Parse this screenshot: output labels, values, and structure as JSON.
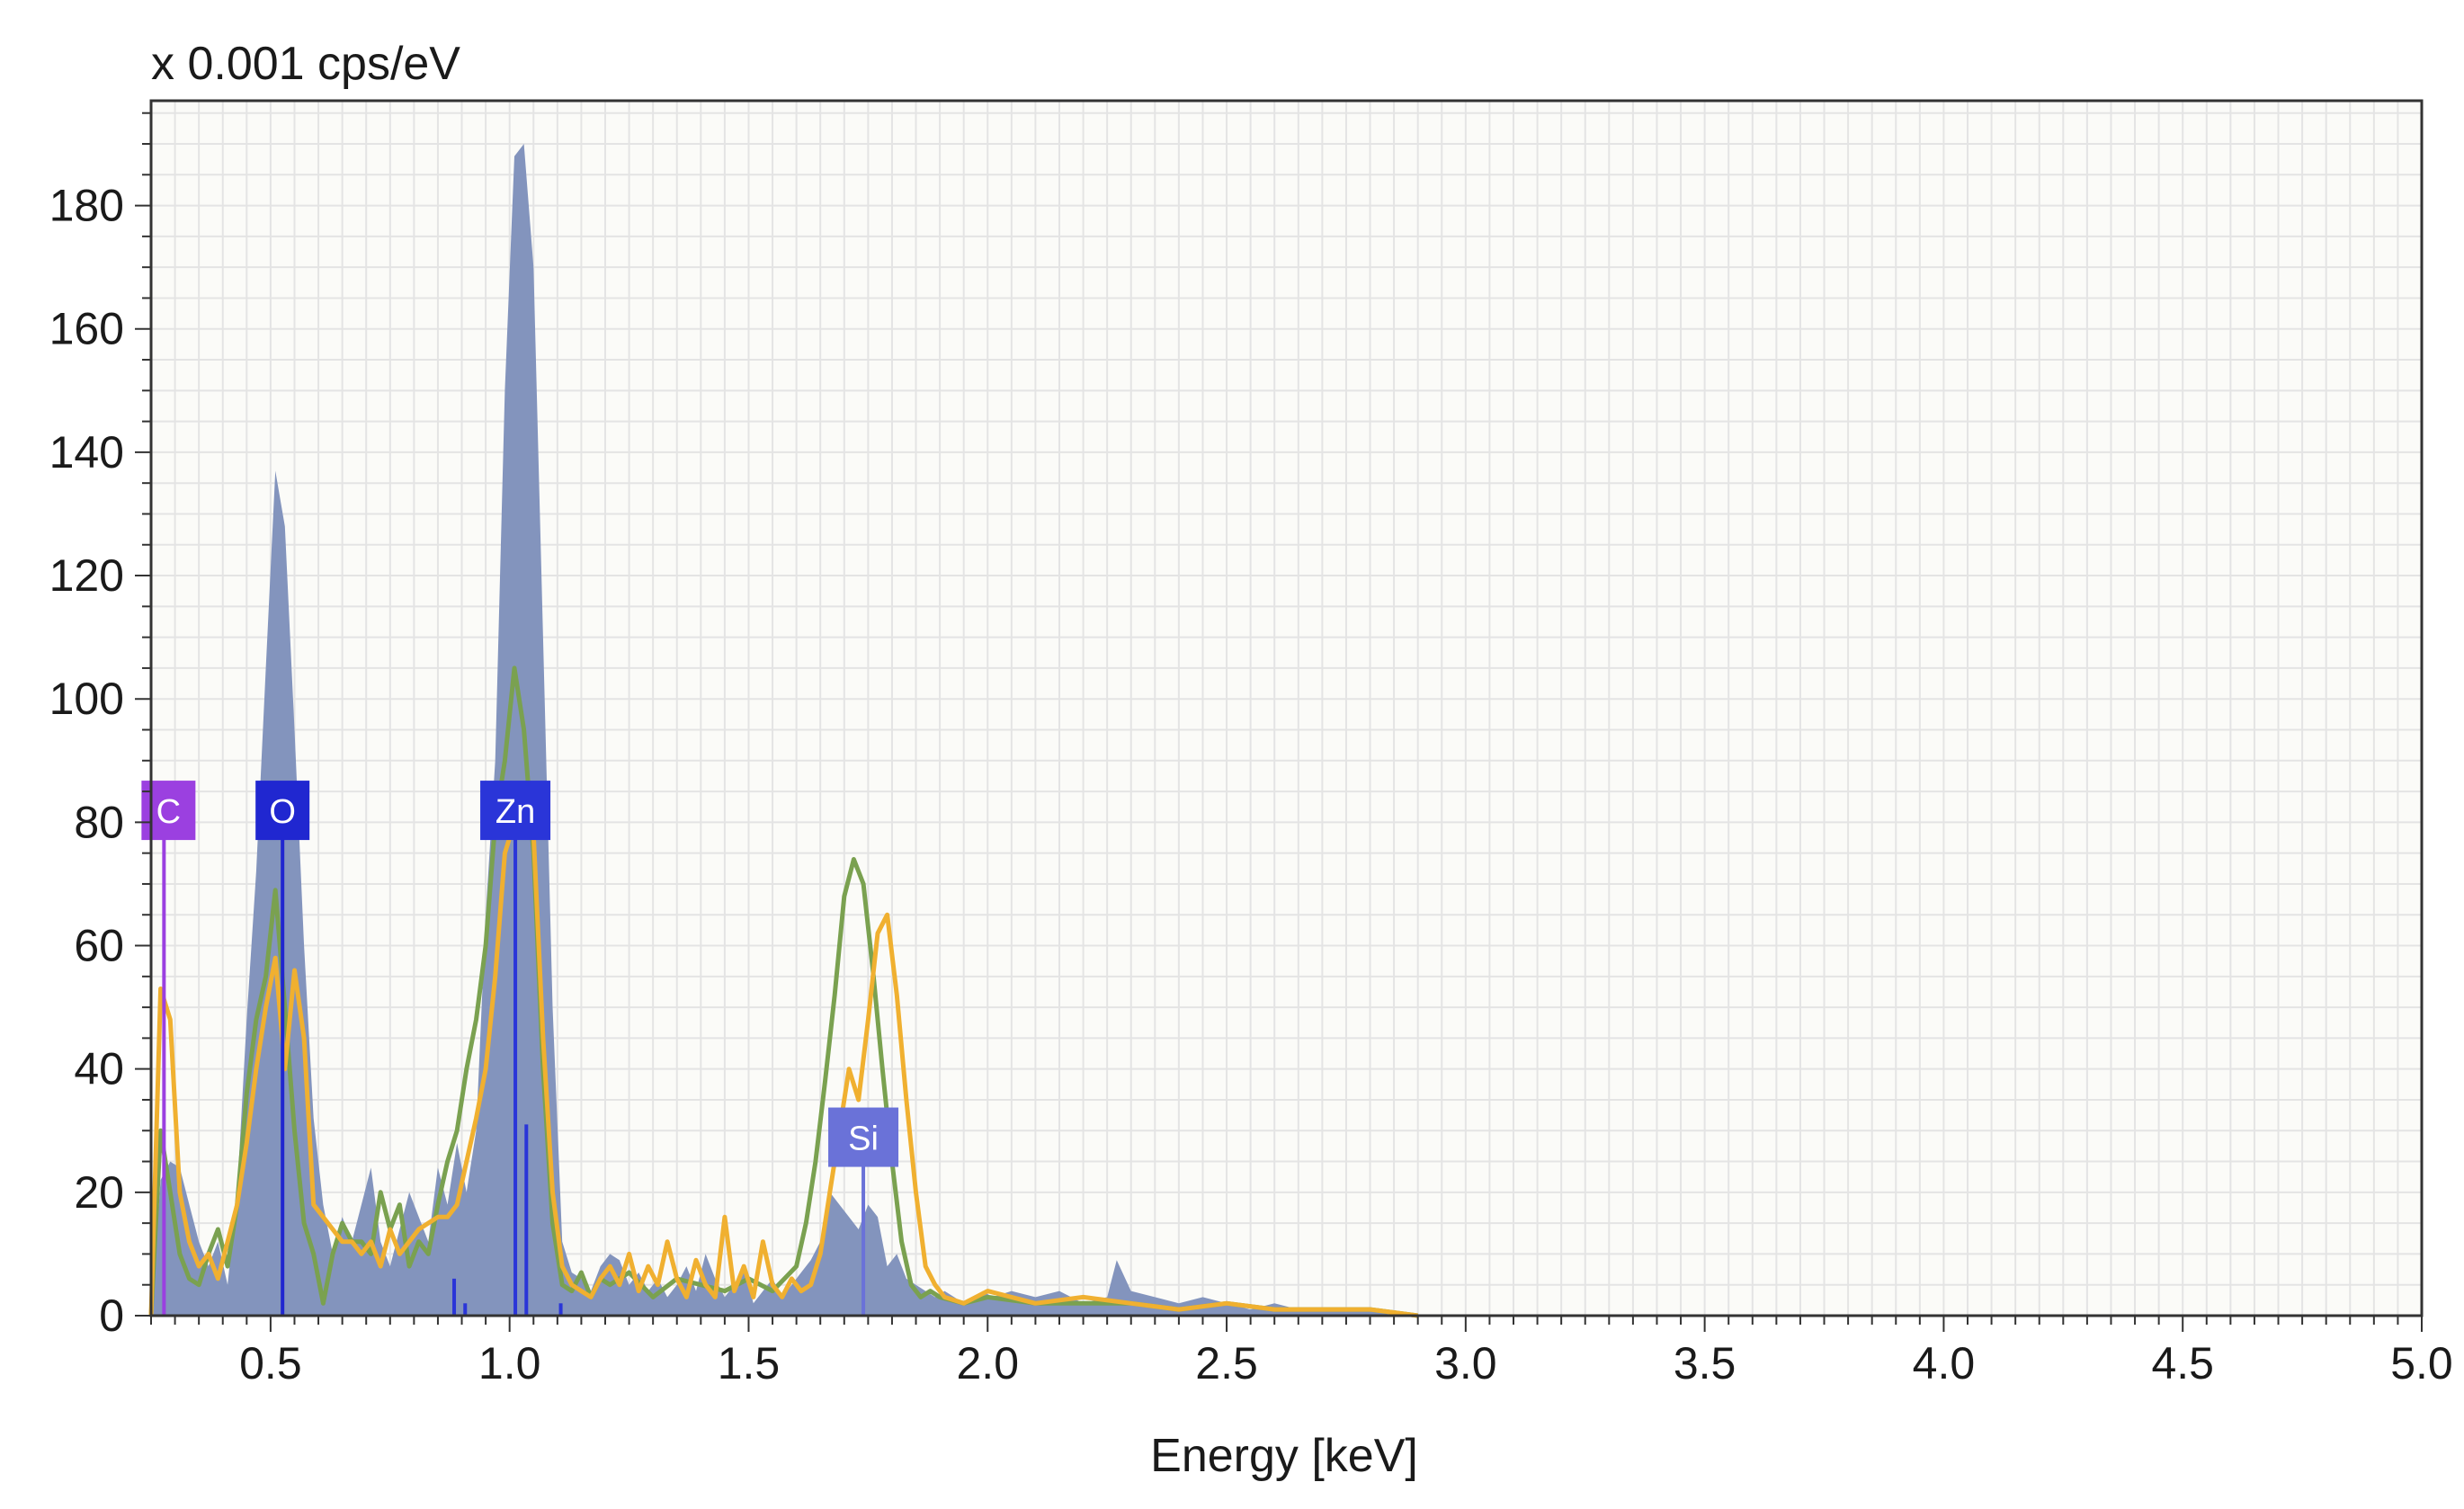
{
  "chart_data": {
    "type": "area",
    "title": "",
    "xlabel": "Energy [keV]",
    "ylabel": "x 0.001 cps/eV",
    "xlim": [
      0.25,
      5.0
    ],
    "ylim": [
      0,
      197
    ],
    "x_ticks": [
      0.5,
      1.0,
      1.5,
      2.0,
      2.5,
      3.0,
      3.5,
      4.0,
      4.5,
      5.0
    ],
    "x_tick_labels": [
      "0.5",
      "1.0",
      "1.5",
      "2.0",
      "2.5",
      "3.0",
      "3.5",
      "4.0",
      "4.5",
      "5.0"
    ],
    "y_ticks": [
      0,
      20,
      40,
      60,
      80,
      100,
      120,
      140,
      160,
      180
    ],
    "y_tick_labels": [
      "0",
      "20",
      "40",
      "60",
      "80",
      "100",
      "120",
      "140",
      "160",
      "180"
    ],
    "grid": true,
    "colors": {
      "area": "#8394bd",
      "green": "#7aa150",
      "orange": "#f0b030",
      "grid": "#e4e4e4",
      "C": "#9b40e0",
      "O": "#2027d0",
      "Zn": "#2a35d8",
      "Si": "#6a72d8"
    },
    "series": [
      {
        "style": "area",
        "color": "#8394bd",
        "x": [
          0.25,
          0.27,
          0.29,
          0.31,
          0.33,
          0.35,
          0.37,
          0.39,
          0.41,
          0.43,
          0.45,
          0.47,
          0.49,
          0.51,
          0.53,
          0.55,
          0.57,
          0.59,
          0.61,
          0.63,
          0.65,
          0.67,
          0.69,
          0.71,
          0.73,
          0.75,
          0.77,
          0.79,
          0.81,
          0.83,
          0.85,
          0.87,
          0.89,
          0.91,
          0.93,
          0.95,
          0.97,
          0.99,
          1.01,
          1.03,
          1.05,
          1.07,
          1.09,
          1.11,
          1.13,
          1.15,
          1.17,
          1.19,
          1.21,
          1.23,
          1.25,
          1.27,
          1.29,
          1.31,
          1.33,
          1.35,
          1.37,
          1.39,
          1.41,
          1.43,
          1.45,
          1.47,
          1.49,
          1.51,
          1.53,
          1.55,
          1.57,
          1.59,
          1.61,
          1.63,
          1.65,
          1.67,
          1.69,
          1.71,
          1.73,
          1.75,
          1.77,
          1.79,
          1.81,
          1.83,
          1.85,
          1.87,
          1.89,
          1.91,
          1.93,
          1.95,
          1.97,
          1.99,
          2.01,
          2.05,
          2.1,
          2.15,
          2.2,
          2.25,
          2.27,
          2.3,
          2.35,
          2.4,
          2.45,
          2.5,
          2.55,
          2.6,
          2.65,
          2.7,
          2.75,
          2.8,
          2.85,
          2.9
        ],
        "values": [
          0,
          22,
          25,
          24,
          18,
          12,
          8,
          12,
          5,
          20,
          48,
          72,
          105,
          137,
          128,
          95,
          60,
          32,
          18,
          10,
          16,
          12,
          18,
          24,
          12,
          8,
          14,
          20,
          16,
          12,
          24,
          18,
          28,
          20,
          30,
          65,
          90,
          150,
          188,
          190,
          170,
          110,
          50,
          12,
          7,
          6,
          4,
          8,
          10,
          9,
          5,
          7,
          4,
          6,
          3,
          5,
          8,
          4,
          10,
          6,
          3,
          5,
          8,
          2,
          4,
          6,
          3,
          5,
          7,
          9,
          12,
          20,
          18,
          16,
          14,
          18,
          16,
          8,
          10,
          6,
          5,
          4,
          3,
          4,
          3,
          2,
          3,
          4,
          3,
          4,
          3,
          4,
          2,
          3,
          9,
          4,
          3,
          2,
          3,
          2,
          1,
          2,
          1,
          1,
          1,
          1,
          0,
          0
        ]
      },
      {
        "style": "line",
        "color": "#7aa150",
        "x": [
          0.25,
          0.27,
          0.29,
          0.31,
          0.33,
          0.35,
          0.37,
          0.39,
          0.41,
          0.43,
          0.45,
          0.47,
          0.49,
          0.51,
          0.53,
          0.55,
          0.57,
          0.59,
          0.61,
          0.63,
          0.65,
          0.67,
          0.69,
          0.71,
          0.73,
          0.75,
          0.77,
          0.79,
          0.81,
          0.83,
          0.85,
          0.87,
          0.89,
          0.91,
          0.93,
          0.95,
          0.97,
          0.99,
          1.01,
          1.03,
          1.05,
          1.07,
          1.09,
          1.11,
          1.13,
          1.15,
          1.17,
          1.19,
          1.21,
          1.25,
          1.3,
          1.35,
          1.4,
          1.45,
          1.5,
          1.55,
          1.6,
          1.62,
          1.64,
          1.66,
          1.68,
          1.7,
          1.72,
          1.74,
          1.76,
          1.78,
          1.8,
          1.82,
          1.84,
          1.86,
          1.88,
          1.9,
          1.95,
          2.0,
          2.1,
          2.2,
          2.3,
          2.4,
          2.5,
          2.6,
          2.7,
          2.8,
          2.9
        ],
        "values": [
          0,
          30,
          20,
          10,
          6,
          5,
          10,
          14,
          8,
          18,
          36,
          48,
          55,
          69,
          50,
          30,
          15,
          10,
          2,
          10,
          15,
          12,
          12,
          10,
          20,
          14,
          18,
          8,
          12,
          10,
          18,
          25,
          30,
          40,
          48,
          60,
          80,
          90,
          105,
          95,
          75,
          40,
          15,
          5,
          4,
          7,
          3,
          6,
          5,
          7,
          3,
          6,
          5,
          4,
          6,
          4,
          8,
          15,
          25,
          38,
          52,
          68,
          74,
          70,
          56,
          40,
          25,
          12,
          5,
          3,
          4,
          3,
          2,
          3,
          2,
          2,
          2,
          1,
          2,
          1,
          1,
          1,
          0
        ]
      },
      {
        "style": "line",
        "color": "#f0b030",
        "x": [
          0.25,
          0.27,
          0.29,
          0.31,
          0.33,
          0.35,
          0.37,
          0.39,
          0.41,
          0.43,
          0.45,
          0.47,
          0.49,
          0.51,
          0.53,
          0.55,
          0.57,
          0.59,
          0.61,
          0.63,
          0.65,
          0.67,
          0.69,
          0.71,
          0.73,
          0.75,
          0.77,
          0.79,
          0.81,
          0.83,
          0.85,
          0.87,
          0.89,
          0.91,
          0.93,
          0.95,
          0.97,
          0.99,
          1.01,
          1.03,
          1.05,
          1.07,
          1.09,
          1.11,
          1.13,
          1.15,
          1.17,
          1.19,
          1.21,
          1.23,
          1.25,
          1.27,
          1.29,
          1.31,
          1.33,
          1.35,
          1.37,
          1.39,
          1.41,
          1.43,
          1.45,
          1.47,
          1.49,
          1.51,
          1.53,
          1.55,
          1.57,
          1.59,
          1.61,
          1.63,
          1.65,
          1.67,
          1.69,
          1.71,
          1.73,
          1.75,
          1.77,
          1.79,
          1.81,
          1.83,
          1.85,
          1.87,
          1.89,
          1.91,
          1.95,
          2.0,
          2.05,
          2.1,
          2.2,
          2.3,
          2.4,
          2.5,
          2.6,
          2.7,
          2.8,
          2.9
        ],
        "values": [
          0,
          53,
          48,
          20,
          12,
          8,
          10,
          6,
          12,
          18,
          28,
          40,
          50,
          58,
          40,
          56,
          45,
          18,
          16,
          14,
          12,
          12,
          10,
          12,
          8,
          14,
          10,
          12,
          14,
          15,
          16,
          16,
          18,
          25,
          32,
          40,
          55,
          75,
          80,
          85,
          78,
          45,
          20,
          8,
          5,
          4,
          3,
          6,
          8,
          5,
          10,
          4,
          8,
          5,
          12,
          6,
          3,
          9,
          5,
          3,
          16,
          4,
          8,
          3,
          12,
          5,
          3,
          6,
          4,
          5,
          10,
          20,
          30,
          40,
          35,
          48,
          62,
          65,
          52,
          35,
          20,
          8,
          5,
          3,
          2,
          4,
          3,
          2,
          3,
          2,
          1,
          2,
          1,
          1,
          1,
          0
        ]
      }
    ],
    "element_markers": [
      {
        "label": "C",
        "energy": 0.277,
        "line_top": 78,
        "extra_lines": []
      },
      {
        "label": "O",
        "energy": 0.525,
        "line_top": 78,
        "extra_lines": []
      },
      {
        "label": "Zn",
        "energy": 1.012,
        "line_top": 78,
        "extra_lines": [
          [
            0.884,
            6
          ],
          [
            0.907,
            2
          ],
          [
            1.035,
            31
          ],
          [
            1.107,
            2
          ]
        ]
      },
      {
        "label": "Si",
        "energy": 1.74,
        "line_top": 25,
        "extra_lines": []
      }
    ]
  }
}
